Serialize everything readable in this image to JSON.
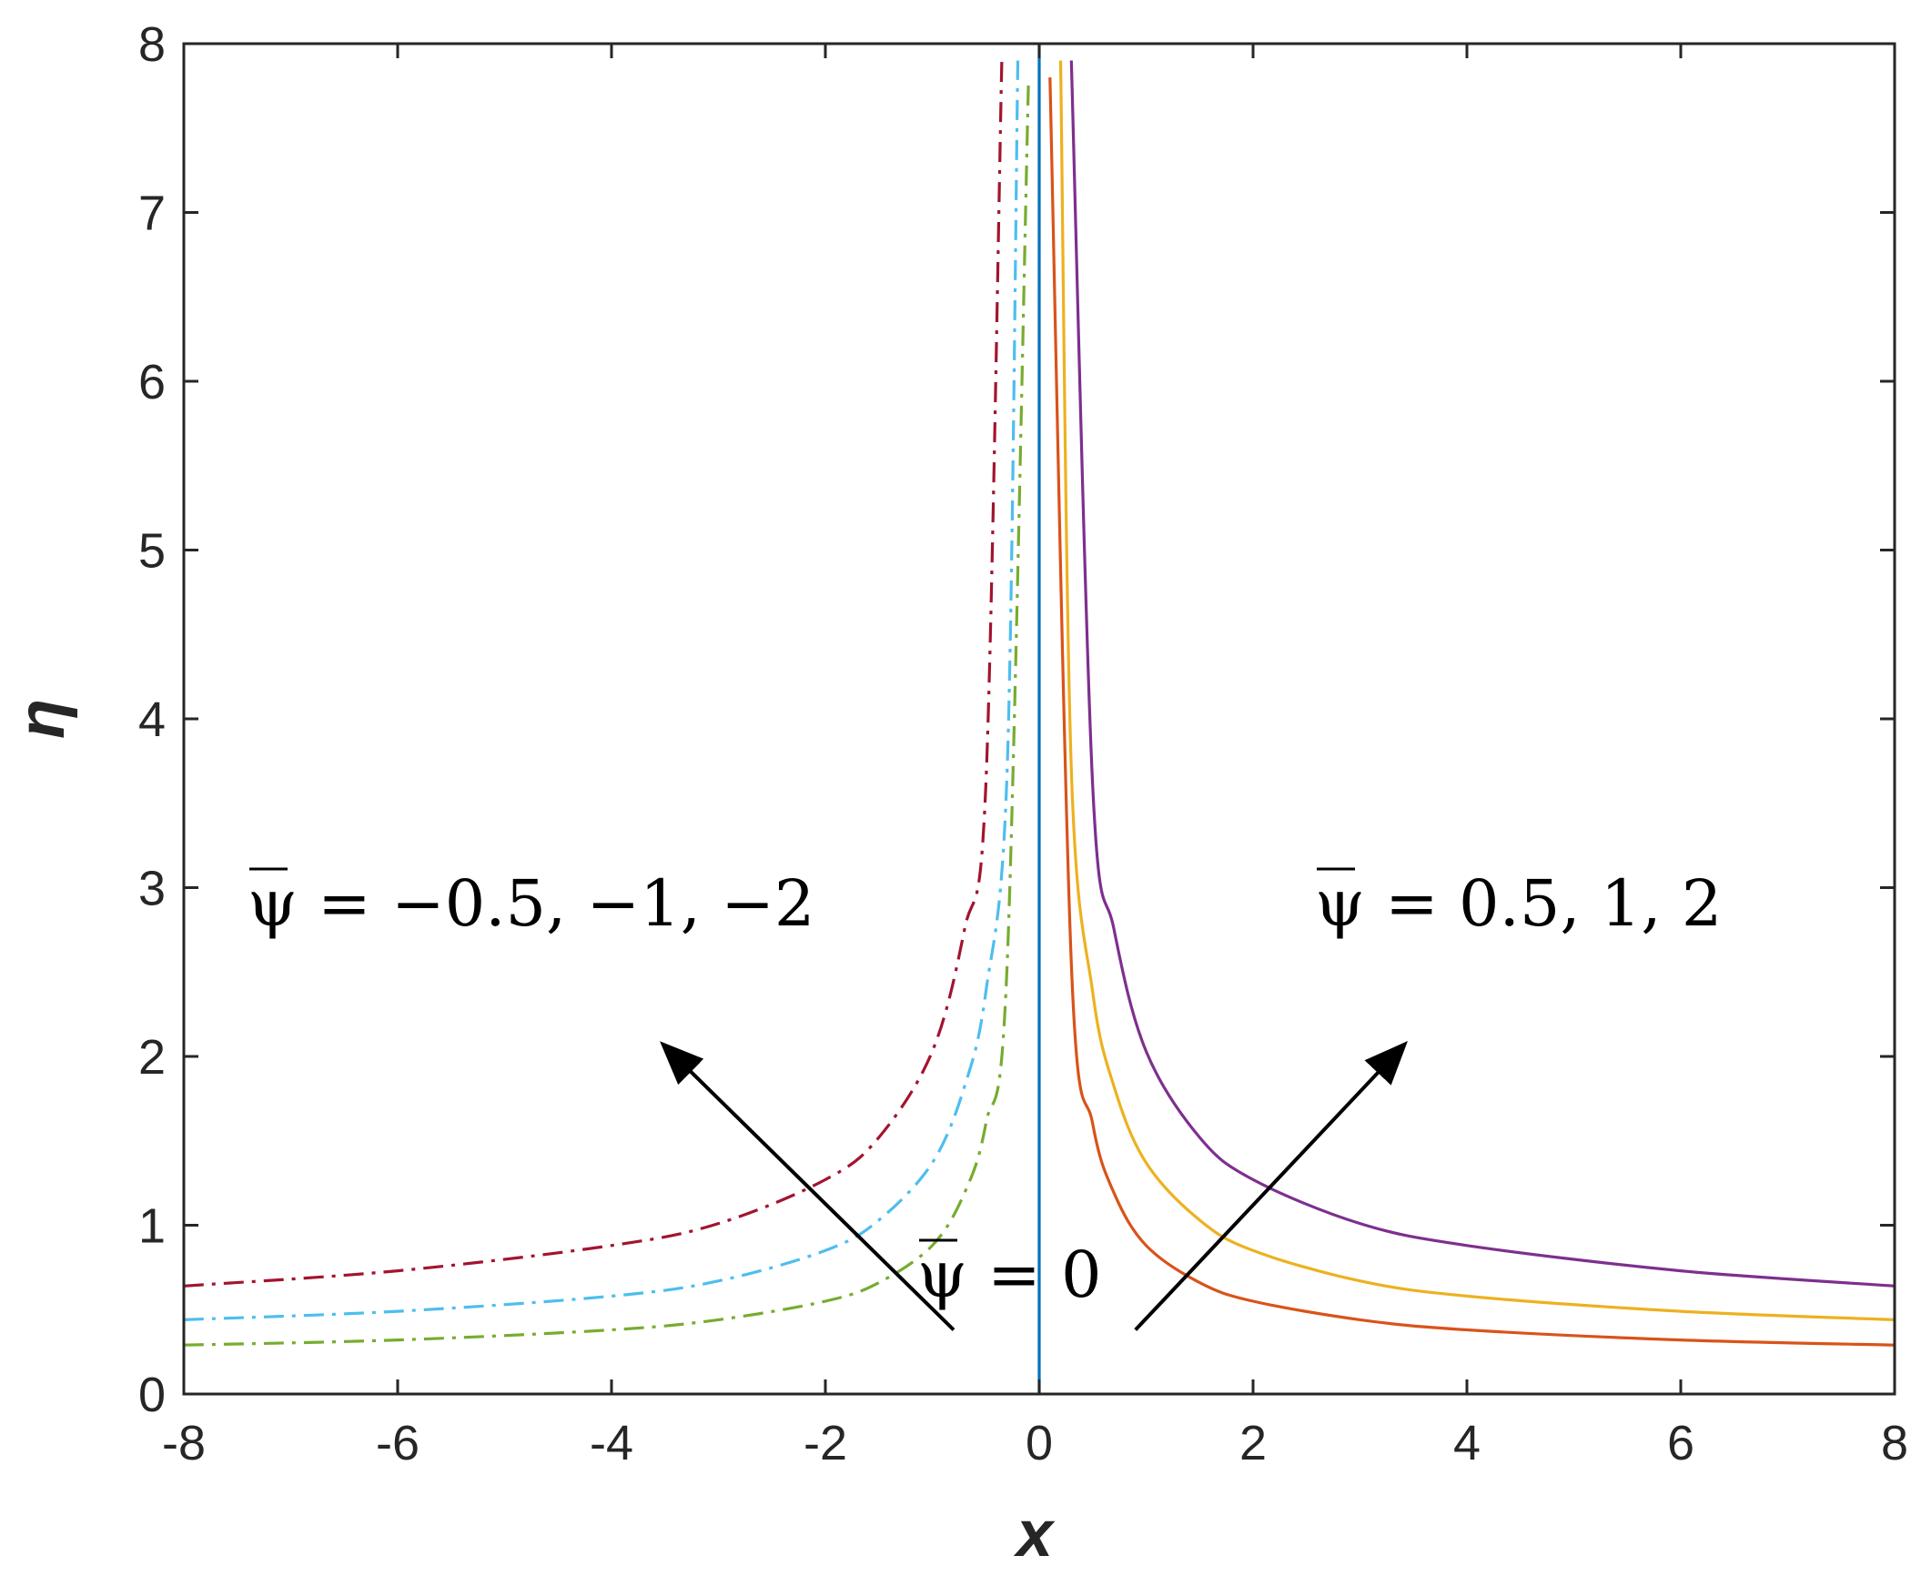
{
  "chart_data": {
    "type": "line",
    "xlabel": "x",
    "ylabel": "η",
    "xlim": [
      -8,
      8
    ],
    "ylim": [
      0,
      8
    ],
    "xticks": [
      -8,
      -6,
      -4,
      -2,
      0,
      2,
      4,
      6,
      8
    ],
    "yticks": [
      0,
      1,
      2,
      3,
      4,
      5,
      6,
      7,
      8
    ],
    "grid": false,
    "series": [
      {
        "psi": -0.5,
        "style": "dashdot",
        "color": "#77ac30",
        "x": [
          -8,
          -6,
          -4,
          -3,
          -2,
          -1.5,
          -1,
          -0.7,
          -0.5,
          -0.3,
          -0.1
        ],
        "y": [
          0.29,
          0.32,
          0.38,
          0.44,
          0.55,
          0.66,
          0.88,
          1.19,
          1.6,
          2.55,
          7.8
        ]
      },
      {
        "psi": -1,
        "style": "dashdot",
        "color": "#4dbeee",
        "x": [
          -8,
          -6,
          -4,
          -3,
          -2,
          -1.5,
          -1,
          -0.7,
          -0.5,
          -0.3,
          -0.2
        ],
        "y": [
          0.44,
          0.49,
          0.58,
          0.67,
          0.85,
          1.03,
          1.37,
          1.82,
          2.38,
          3.7,
          7.9
        ]
      },
      {
        "psi": -2,
        "style": "dashdot",
        "color": "#a2142f",
        "x": [
          -8,
          -6,
          -4,
          -3,
          -2,
          -1.5,
          -1,
          -0.7,
          -0.5,
          -0.35
        ],
        "y": [
          0.64,
          0.73,
          0.88,
          1.01,
          1.27,
          1.52,
          2.03,
          2.75,
          3.6,
          7.9
        ]
      },
      {
        "psi": 0,
        "style": "solid",
        "color": "#0072bd",
        "x": [
          0,
          0
        ],
        "y": [
          0,
          8
        ]
      },
      {
        "psi": 0.5,
        "style": "solid",
        "color": "#d95319",
        "x": [
          0.1,
          0.3,
          0.5,
          0.7,
          1,
          1.5,
          2,
          3,
          4,
          6,
          8
        ],
        "y": [
          7.8,
          2.55,
          1.6,
          1.19,
          0.88,
          0.66,
          0.55,
          0.44,
          0.38,
          0.32,
          0.29
        ]
      },
      {
        "psi": 1,
        "style": "solid",
        "color": "#edb120",
        "x": [
          0.2,
          0.3,
          0.5,
          0.7,
          1,
          1.5,
          2,
          3,
          4,
          6,
          8
        ],
        "y": [
          7.9,
          3.7,
          2.38,
          1.82,
          1.37,
          1.03,
          0.85,
          0.67,
          0.58,
          0.49,
          0.44
        ]
      },
      {
        "psi": 2,
        "style": "solid",
        "color": "#7e2f8e",
        "x": [
          0.3,
          0.5,
          0.7,
          1,
          1.5,
          2,
          3,
          4,
          6,
          8
        ],
        "y": [
          7.9,
          3.6,
          2.75,
          2.03,
          1.52,
          1.27,
          1.01,
          0.88,
          0.73,
          0.64
        ]
      }
    ],
    "annotations": {
      "negative": "ψ = −0.5, −1, −2",
      "positive": "ψ = 0.5, 1, 2",
      "zero": "ψ = 0"
    },
    "arrows": [
      {
        "from": [
          -0.8,
          0.38
        ],
        "to": [
          -3.5,
          2.06
        ]
      },
      {
        "from": [
          0.9,
          0.38
        ],
        "to": [
          3.4,
          2.06
        ]
      }
    ]
  }
}
